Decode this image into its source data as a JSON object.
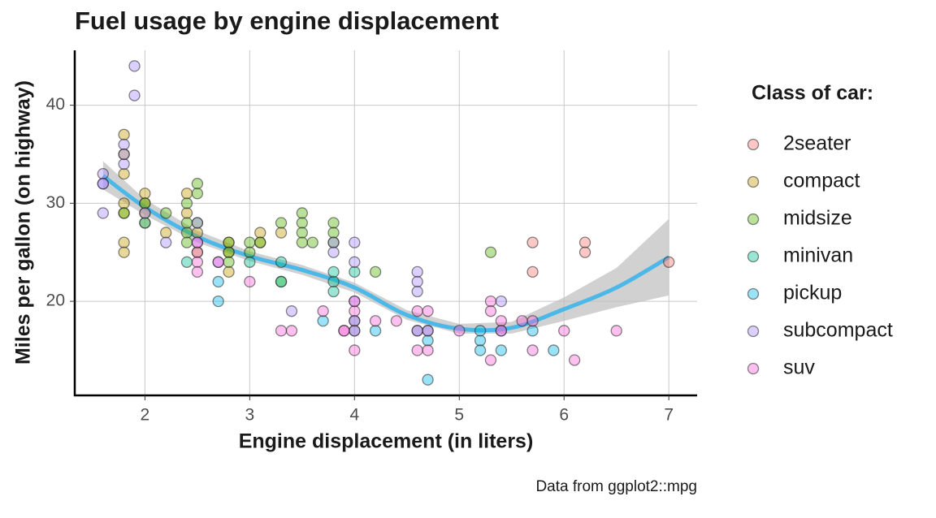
{
  "chart_data": {
    "type": "scatter",
    "title": "Fuel usage by engine displacement",
    "x_label": "Engine displacement (in liters)",
    "y_label": "Miles per gallon (on highway)",
    "caption": "Data from ggplot2::mpg",
    "legend_title": "Class of car:",
    "legend": "right",
    "grid": true,
    "xlim": [
      1.33,
      7.27
    ],
    "ylim": [
      10.4,
      45.6
    ],
    "xticks": [
      2,
      3,
      4,
      5,
      6,
      7
    ],
    "yticks": [
      20,
      30,
      40
    ],
    "series": [
      {
        "name": "2seater",
        "color": "#F8766D",
        "x": [
          5.7,
          5.7,
          6.2,
          6.2,
          7.0
        ],
        "values": [
          26,
          23,
          26,
          25,
          24
        ]
      },
      {
        "name": "compact",
        "color": "#C49A00",
        "x": [
          1.8,
          1.8,
          1.8,
          1.8,
          1.8,
          1.8,
          2.0,
          2.0,
          2.0,
          2.0,
          2.2,
          2.4,
          2.4,
          2.5,
          2.8,
          2.8,
          2.8,
          3.1,
          3.1,
          3.3,
          1.8,
          2.5
        ],
        "values": [
          37,
          35,
          33,
          30,
          26,
          25,
          31,
          30,
          29,
          28,
          27,
          29,
          31,
          27,
          26,
          25,
          23,
          27,
          26,
          27,
          29,
          25
        ]
      },
      {
        "name": "midsize",
        "color": "#53B400",
        "x": [
          1.8,
          2.0,
          2.2,
          2.4,
          2.4,
          2.4,
          2.5,
          2.5,
          2.5,
          2.8,
          2.8,
          2.8,
          3.0,
          3.1,
          3.3,
          3.3,
          3.5,
          3.5,
          3.5,
          3.5,
          3.6,
          3.8,
          3.8,
          3.8,
          4.2,
          5.3,
          3.0,
          2.4
        ],
        "values": [
          29,
          30,
          29,
          30,
          27,
          26,
          32,
          31,
          28,
          26,
          25,
          24,
          26,
          26,
          28,
          22,
          29,
          28,
          27,
          26,
          26,
          28,
          27,
          26,
          23,
          25,
          25,
          28
        ]
      },
      {
        "name": "minivan",
        "color": "#00C094",
        "x": [
          2.4,
          3.0,
          3.3,
          3.3,
          3.8,
          3.8,
          3.8,
          4.0,
          2.0
        ],
        "values": [
          24,
          24,
          24,
          22,
          22,
          21,
          23,
          23,
          28
        ]
      },
      {
        "name": "pickup",
        "color": "#00B6EB",
        "x": [
          2.7,
          2.7,
          3.7,
          4.0,
          4.2,
          4.6,
          4.7,
          4.7,
          5.2,
          5.2,
          5.4,
          5.7,
          5.9,
          4.0,
          4.7,
          5.2
        ],
        "values": [
          20,
          22,
          18,
          18,
          17,
          17,
          17,
          16,
          16,
          15,
          15,
          17,
          15,
          17,
          12,
          17
        ]
      },
      {
        "name": "subcompact",
        "color": "#A58AFF",
        "x": [
          1.6,
          1.6,
          1.6,
          1.8,
          1.8,
          1.8,
          1.9,
          1.9,
          2.0,
          2.2,
          2.5,
          2.5,
          2.7,
          3.4,
          3.8,
          3.8,
          4.0,
          4.0,
          4.0,
          4.6,
          4.6,
          4.6,
          5.4,
          5.4,
          1.6
        ],
        "values": [
          33,
          32,
          29,
          36,
          34,
          35,
          44,
          41,
          29,
          26,
          26,
          28,
          24,
          19,
          26,
          25,
          26,
          24,
          20,
          23,
          22,
          21,
          20,
          17,
          32
        ]
      },
      {
        "name": "suv",
        "color": "#FB61D7",
        "x": [
          2.5,
          2.5,
          2.5,
          2.5,
          2.7,
          3.0,
          3.3,
          3.4,
          3.7,
          3.9,
          4.0,
          4.0,
          4.0,
          4.0,
          4.2,
          4.4,
          4.6,
          4.6,
          4.6,
          4.7,
          4.7,
          4.7,
          5.0,
          5.3,
          5.3,
          5.3,
          5.4,
          5.4,
          5.6,
          5.7,
          5.7,
          6.0,
          6.1,
          6.5,
          4.0,
          3.9
        ],
        "values": [
          25,
          24,
          23,
          26,
          24,
          22,
          17,
          17,
          19,
          17,
          19,
          18,
          17,
          15,
          18,
          18,
          19,
          17,
          15,
          19,
          17,
          15,
          17,
          20,
          19,
          14,
          18,
          17,
          18,
          18,
          15,
          17,
          14,
          17,
          20,
          17
        ]
      }
    ],
    "smooth": {
      "color": "#4BB8E8",
      "band_color": "#BEBEBE",
      "x": [
        1.6,
        2.0,
        2.5,
        3.0,
        3.5,
        4.0,
        4.5,
        5.0,
        5.5,
        6.0,
        6.5,
        7.0
      ],
      "values": [
        32.8,
        29.6,
        26.6,
        24.6,
        23.2,
        21.4,
        18.6,
        17.2,
        17.3,
        19.2,
        21.4,
        24.5
      ],
      "lower": [
        31.4,
        28.8,
        26.0,
        24.1,
        22.7,
        20.9,
        18.1,
        16.7,
        16.7,
        18.0,
        19.4,
        20.6
      ],
      "upper": [
        34.3,
        30.4,
        27.2,
        25.1,
        23.7,
        21.9,
        19.1,
        17.7,
        17.9,
        20.4,
        23.4,
        28.4
      ]
    }
  }
}
